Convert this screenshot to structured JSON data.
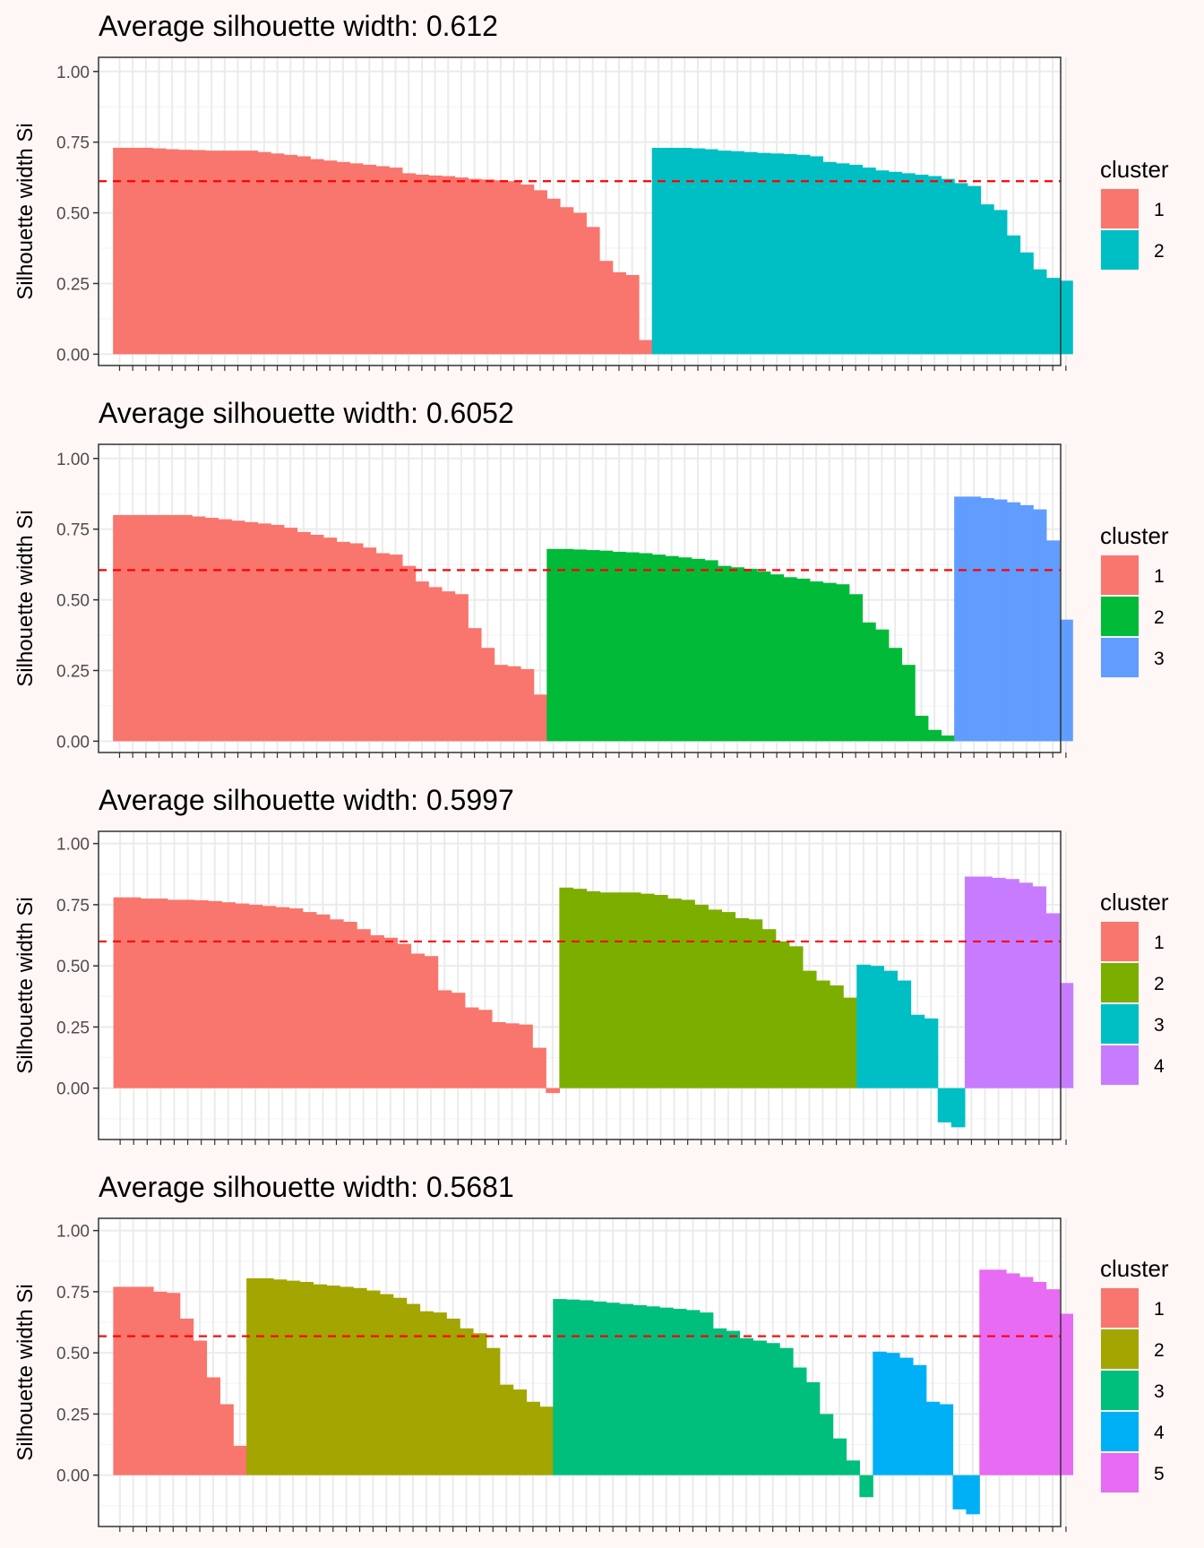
{
  "colors": {
    "background": "#FFF7F5",
    "panel_border": "#333333",
    "grid_major": "#EBEBEB",
    "grid_minor": "#F5F5F5",
    "avg_line": "#FF0000"
  },
  "chart_data": [
    {
      "type": "bar",
      "title": "Average silhouette width: 0.612",
      "ylabel": "Silhouette width Si",
      "xlabel": "",
      "ylim": [
        -0.04,
        1.05
      ],
      "yticks": [
        "1.00",
        "0.75",
        "0.50",
        "0.25",
        "0.00"
      ],
      "tick_values": [
        1.0,
        0.75,
        0.5,
        0.25,
        0.0
      ],
      "avg_width": 0.612,
      "grid": true,
      "legend": {
        "title": "cluster",
        "position": "right",
        "labels": [
          "1",
          "2"
        ],
        "colors": [
          "#F8766D",
          "#00BFC4"
        ]
      },
      "clusters": [
        {
          "cluster": "1",
          "color": "#F8766D",
          "values": [
            0.73,
            0.73,
            0.73,
            0.728,
            0.725,
            0.723,
            0.722,
            0.72,
            0.72,
            0.72,
            0.72,
            0.715,
            0.71,
            0.705,
            0.7,
            0.69,
            0.685,
            0.68,
            0.675,
            0.67,
            0.665,
            0.66,
            0.64,
            0.635,
            0.632,
            0.63,
            0.625,
            0.62,
            0.618,
            0.615,
            0.612,
            0.6,
            0.58,
            0.55,
            0.52,
            0.5,
            0.45,
            0.33,
            0.29,
            0.28,
            0.05
          ]
        },
        {
          "cluster": "2",
          "color": "#00BFC4",
          "values": [
            0.73,
            0.73,
            0.73,
            0.728,
            0.725,
            0.72,
            0.718,
            0.715,
            0.712,
            0.71,
            0.708,
            0.705,
            0.7,
            0.68,
            0.675,
            0.67,
            0.66,
            0.65,
            0.645,
            0.64,
            0.635,
            0.63,
            0.62,
            0.605,
            0.595,
            0.53,
            0.51,
            0.42,
            0.36,
            0.3,
            0.27,
            0.26
          ]
        }
      ]
    },
    {
      "type": "bar",
      "title": "Average silhouette width: 0.6052",
      "ylabel": "Silhouette width Si",
      "xlabel": "",
      "ylim": [
        -0.04,
        1.05
      ],
      "yticks": [
        "1.00",
        "0.75",
        "0.50",
        "0.25",
        "0.00"
      ],
      "tick_values": [
        1.0,
        0.75,
        0.5,
        0.25,
        0.0
      ],
      "avg_width": 0.6052,
      "grid": true,
      "legend": {
        "title": "cluster",
        "position": "right",
        "labels": [
          "1",
          "2",
          "3"
        ],
        "colors": [
          "#F8766D",
          "#00BA38",
          "#619CFF"
        ]
      },
      "clusters": [
        {
          "cluster": "1",
          "color": "#F8766D",
          "values": [
            0.8,
            0.8,
            0.8,
            0.8,
            0.8,
            0.8,
            0.795,
            0.79,
            0.785,
            0.78,
            0.775,
            0.77,
            0.765,
            0.755,
            0.74,
            0.73,
            0.72,
            0.705,
            0.7,
            0.685,
            0.665,
            0.66,
            0.62,
            0.565,
            0.545,
            0.53,
            0.52,
            0.4,
            0.33,
            0.27,
            0.265,
            0.255,
            0.165
          ]
        },
        {
          "cluster": "2",
          "color": "#00BA38",
          "values": [
            0.68,
            0.68,
            0.678,
            0.676,
            0.674,
            0.67,
            0.668,
            0.665,
            0.66,
            0.655,
            0.65,
            0.645,
            0.64,
            0.62,
            0.615,
            0.61,
            0.6,
            0.59,
            0.58,
            0.575,
            0.565,
            0.56,
            0.555,
            0.52,
            0.42,
            0.395,
            0.33,
            0.27,
            0.09,
            0.04,
            0.02
          ]
        },
        {
          "cluster": "3",
          "color": "#619CFF",
          "values": [
            0.865,
            0.865,
            0.86,
            0.855,
            0.845,
            0.835,
            0.82,
            0.71,
            0.43
          ]
        }
      ]
    },
    {
      "type": "bar",
      "title": "Average silhouette width: 0.5997",
      "ylabel": "Silhouette width Si",
      "xlabel": "",
      "ylim": [
        -0.21,
        1.05
      ],
      "yticks": [
        "1.00",
        "0.75",
        "0.50",
        "0.25",
        "0.00"
      ],
      "tick_values": [
        1.0,
        0.75,
        0.5,
        0.25,
        0.0
      ],
      "avg_width": 0.5997,
      "grid": true,
      "legend": {
        "title": "cluster",
        "position": "right",
        "labels": [
          "1",
          "2",
          "3",
          "4"
        ],
        "colors": [
          "#F8766D",
          "#7CAE00",
          "#00BFC4",
          "#C77CFF"
        ]
      },
      "clusters": [
        {
          "cluster": "1",
          "color": "#F8766D",
          "values": [
            0.78,
            0.78,
            0.775,
            0.775,
            0.77,
            0.77,
            0.768,
            0.765,
            0.76,
            0.755,
            0.75,
            0.745,
            0.74,
            0.735,
            0.72,
            0.71,
            0.69,
            0.68,
            0.65,
            0.625,
            0.615,
            0.59,
            0.55,
            0.54,
            0.4,
            0.39,
            0.33,
            0.32,
            0.27,
            0.265,
            0.26,
            0.165,
            -0.02
          ]
        },
        {
          "cluster": "2",
          "color": "#7CAE00",
          "values": [
            0.82,
            0.815,
            0.805,
            0.8,
            0.8,
            0.8,
            0.795,
            0.79,
            0.775,
            0.77,
            0.75,
            0.73,
            0.72,
            0.695,
            0.69,
            0.65,
            0.6,
            0.58,
            0.48,
            0.44,
            0.42,
            0.37
          ]
        },
        {
          "cluster": "3",
          "color": "#00BFC4",
          "values": [
            0.505,
            0.5,
            0.48,
            0.44,
            0.3,
            0.285,
            -0.14,
            -0.16
          ]
        },
        {
          "cluster": "4",
          "color": "#C77CFF",
          "values": [
            0.865,
            0.865,
            0.86,
            0.855,
            0.84,
            0.825,
            0.715,
            0.43
          ]
        }
      ]
    },
    {
      "type": "bar",
      "title": "Average silhouette width: 0.5681",
      "ylabel": "Silhouette width Si",
      "xlabel": "",
      "ylim": [
        -0.21,
        1.05
      ],
      "yticks": [
        "1.00",
        "0.75",
        "0.50",
        "0.25",
        "0.00"
      ],
      "tick_values": [
        1.0,
        0.75,
        0.5,
        0.25,
        0.0
      ],
      "avg_width": 0.5681,
      "grid": true,
      "legend": {
        "title": "cluster",
        "position": "right",
        "labels": [
          "1",
          "2",
          "3",
          "4",
          "5"
        ],
        "colors": [
          "#F8766D",
          "#A3A500",
          "#00BF7D",
          "#00B0F6",
          "#E76BF3"
        ]
      },
      "clusters": [
        {
          "cluster": "1",
          "color": "#F8766D",
          "values": [
            0.77,
            0.77,
            0.77,
            0.75,
            0.745,
            0.64,
            0.55,
            0.4,
            0.29,
            0.12
          ]
        },
        {
          "cluster": "2",
          "color": "#A3A500",
          "values": [
            0.805,
            0.805,
            0.8,
            0.795,
            0.79,
            0.78,
            0.775,
            0.77,
            0.765,
            0.755,
            0.74,
            0.725,
            0.7,
            0.67,
            0.665,
            0.64,
            0.6,
            0.58,
            0.52,
            0.37,
            0.35,
            0.3,
            0.28
          ]
        },
        {
          "cluster": "3",
          "color": "#00BF7D",
          "values": [
            0.72,
            0.718,
            0.715,
            0.71,
            0.705,
            0.7,
            0.695,
            0.69,
            0.685,
            0.68,
            0.675,
            0.665,
            0.6,
            0.59,
            0.56,
            0.55,
            0.54,
            0.52,
            0.44,
            0.38,
            0.25,
            0.15,
            0.06,
            -0.09
          ]
        },
        {
          "cluster": "4",
          "color": "#00B0F6",
          "values": [
            0.505,
            0.5,
            0.48,
            0.45,
            0.3,
            0.29,
            -0.14,
            -0.16
          ]
        },
        {
          "cluster": "5",
          "color": "#E76BF3",
          "values": [
            0.84,
            0.84,
            0.825,
            0.81,
            0.79,
            0.76,
            0.66
          ]
        }
      ]
    }
  ]
}
